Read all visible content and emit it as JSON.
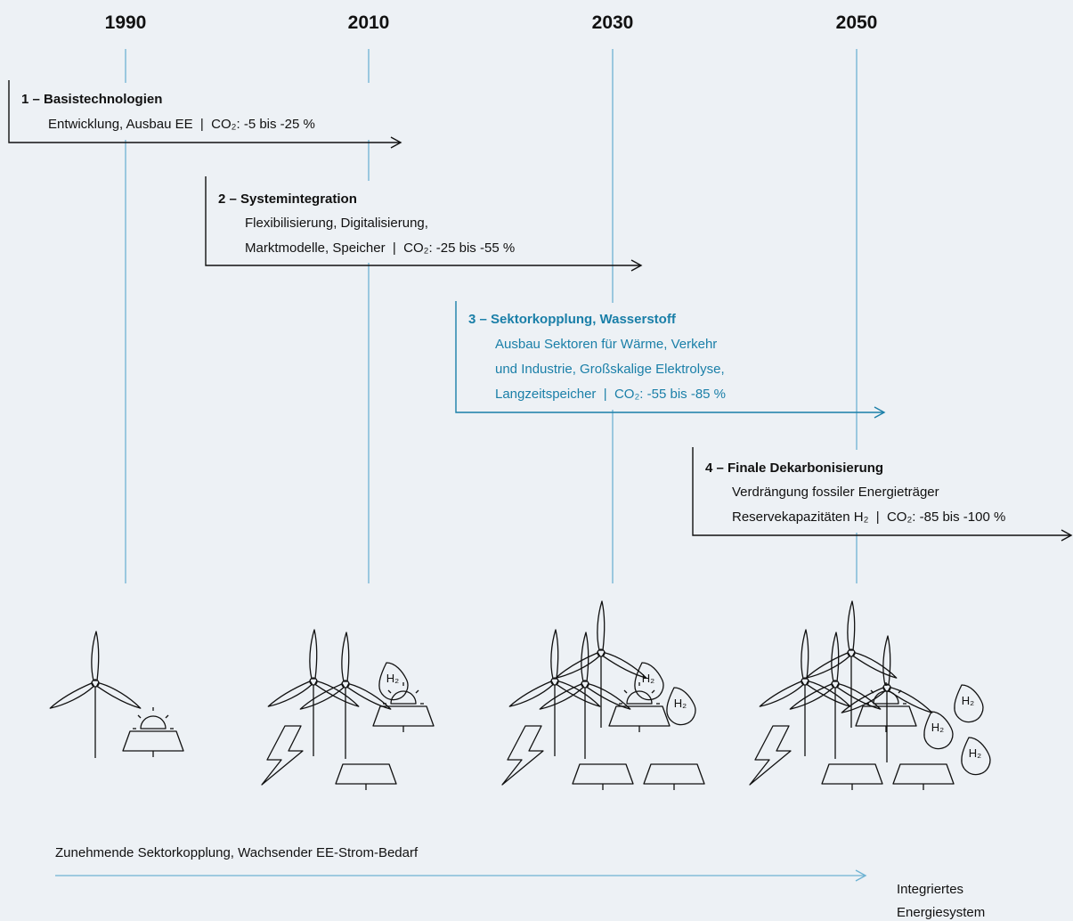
{
  "years": [
    "1990",
    "2010",
    "2030",
    "2050"
  ],
  "phases": [
    {
      "title": "1 – Basistechnologien",
      "lines": [
        "Entwicklung, Ausbau EE  |  CO₂: -5 bis -25 %"
      ]
    },
    {
      "title": "2 – Systemintegration",
      "lines": [
        "Flexibilisierung, Digitalisierung,",
        "Marktmodelle, Speicher  |  CO₂: -25 bis -55 %"
      ]
    },
    {
      "title": "3 – Sektorkopplung, Wasserstoff",
      "lines": [
        "Ausbau Sektoren für Wärme, Verkehr",
        "und Industrie, Großskalige Elektrolyse,",
        "Langzeitspeicher  |  CO₂: -55 bis -85 %"
      ]
    },
    {
      "title": "4 – Finale Dekarbonisierung",
      "lines": [
        "Verdrängung fossiler Energieträger",
        "Reservekapazitäten H₂  |  CO₂: -85 bis -100 %"
      ]
    }
  ],
  "h2_label": "H₂",
  "progress_label": "Zunehmende Sektorkopplung, Wachsender EE-Strom-Bedarf",
  "result_label": [
    "Integriertes",
    "Energiesystem"
  ]
}
